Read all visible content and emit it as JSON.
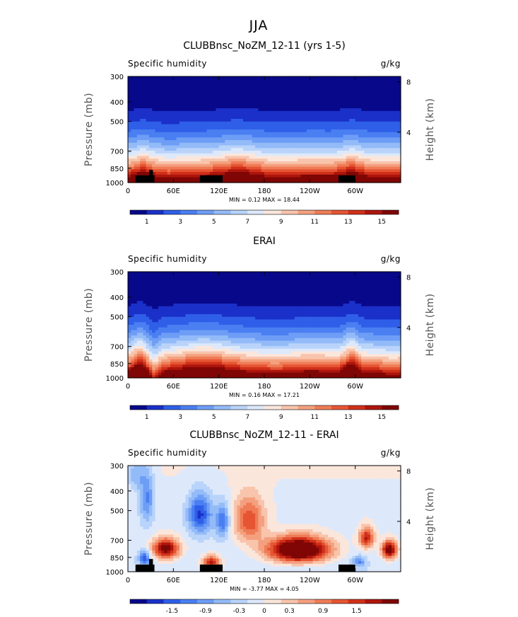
{
  "suptitle": "JJA",
  "colors": {
    "seq": [
      "#08088a",
      "#1a30c8",
      "#2f5fe8",
      "#4a7ff2",
      "#6e9df6",
      "#93bbf8",
      "#b9d3fa",
      "#dde9fb",
      "#fbe6dc",
      "#f8c4ab",
      "#f4a07f",
      "#ef7c57",
      "#e65533",
      "#d0301a",
      "#ad150c",
      "#7f0605"
    ],
    "div": [
      "#08088a",
      "#1a30c8",
      "#2f5fe8",
      "#4a7ff2",
      "#6e9df6",
      "#93bbf8",
      "#b9d3fa",
      "#dde9fb",
      "#fbe6dc",
      "#f8c4ab",
      "#f4a07f",
      "#ef7c57",
      "#e65533",
      "#d0301a",
      "#ad150c",
      "#7f0605"
    ],
    "terrain": "#000000"
  },
  "chart_data": [
    {
      "type": "heatmap",
      "id": "model",
      "title": "CLUBBnsc_NoZM_12-11 (yrs 1-5)",
      "left_label": "Specific humidity",
      "right_label": "g/kg",
      "ylabel": "Pressure (mb)",
      "y2label": "Height (km)",
      "xticks": [
        "0",
        "60E",
        "120E",
        "180",
        "120W",
        "60W"
      ],
      "xtick_lons": [
        0,
        60,
        120,
        180,
        240,
        300
      ],
      "xlim": [
        0,
        360
      ],
      "yticks": [
        "300",
        "400",
        "500",
        "700",
        "850",
        "1000"
      ],
      "ytick_values": [
        300,
        400,
        500,
        700,
        850,
        1000
      ],
      "ylim": [
        300,
        1000
      ],
      "y2ticks": [
        "8",
        "4"
      ],
      "y2tick_km": [
        8,
        4
      ],
      "stats": "MIN =    0.12   MAX =   18.44",
      "colorbar_labels": [
        "1",
        "3",
        "5",
        "7",
        "9",
        "11",
        "13",
        "15"
      ],
      "terrain": true
    },
    {
      "type": "heatmap",
      "id": "obs",
      "title": "ERAI",
      "left_label": "Specific humidity",
      "right_label": "g/kg",
      "ylabel": "Pressure (mb)",
      "y2label": "Height (km)",
      "xticks": [
        "0",
        "60E",
        "120E",
        "180",
        "120W",
        "60W"
      ],
      "xtick_lons": [
        0,
        60,
        120,
        180,
        240,
        300
      ],
      "xlim": [
        0,
        360
      ],
      "yticks": [
        "300",
        "400",
        "500",
        "700",
        "850",
        "1000"
      ],
      "ytick_values": [
        300,
        400,
        500,
        700,
        850,
        1000
      ],
      "ylim": [
        300,
        1000
      ],
      "y2ticks": [
        "8",
        "4"
      ],
      "y2tick_km": [
        8,
        4
      ],
      "stats": "MIN =    0.16   MAX =   17.21",
      "colorbar_labels": [
        "1",
        "3",
        "5",
        "7",
        "9",
        "11",
        "13",
        "15"
      ],
      "terrain": false
    },
    {
      "type": "heatmap",
      "id": "diff",
      "title": "CLUBBnsc_NoZM_12-11 - ERAI",
      "left_label": "Specific humidity",
      "right_label": "g/kg",
      "ylabel": "Pressure (mb)",
      "y2label": "Height (km)",
      "xticks": [
        "0",
        "60E",
        "120E",
        "180",
        "120W",
        "60W"
      ],
      "xtick_lons": [
        0,
        60,
        120,
        180,
        240,
        300
      ],
      "xlim": [
        0,
        360
      ],
      "yticks": [
        "300",
        "400",
        "500",
        "700",
        "850",
        "1000"
      ],
      "ytick_values": [
        300,
        400,
        500,
        700,
        850,
        1000
      ],
      "ylim": [
        300,
        1000
      ],
      "y2ticks": [
        "8",
        "4"
      ],
      "y2tick_km": [
        8,
        4
      ],
      "stats": "MIN =   -3.77   MAX =   4.05",
      "colorbar_labels": [
        "-1.5",
        "-0.9",
        "-0.3",
        "0",
        "0.3",
        "0.9",
        "1.5"
      ],
      "terrain": true
    }
  ]
}
